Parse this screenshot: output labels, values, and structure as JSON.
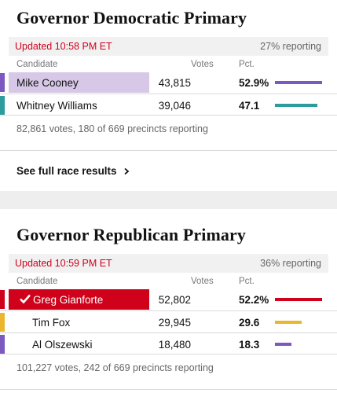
{
  "dem": {
    "title": "Governor Democratic Primary",
    "updated": "Updated 10:58 PM ET",
    "reporting": "27% reporting",
    "col_candidate": "Candidate",
    "col_votes": "Votes",
    "col_pct": "Pct.",
    "candidates": [
      {
        "name": "Mike Cooney",
        "votes": "43,815",
        "pct": "52.9%",
        "pct_value": 52.9,
        "color": "#7b59c0",
        "highlight": "#d6c8e6",
        "winner": false
      },
      {
        "name": "Whitney Williams",
        "votes": "39,046",
        "pct": "47.1",
        "pct_value": 47.1,
        "color": "#2d9c9c",
        "highlight": "",
        "winner": false
      }
    ],
    "summary": "82,861 votes, 180 of 669 precincts reporting",
    "full_results": "See full race results"
  },
  "rep": {
    "title": "Governor Republican Primary",
    "updated": "Updated 10:59 PM ET",
    "reporting": "36% reporting",
    "col_candidate": "Candidate",
    "col_votes": "Votes",
    "col_pct": "Pct.",
    "candidates": [
      {
        "name": "Greg Gianforte",
        "votes": "52,802",
        "pct": "52.2%",
        "pct_value": 52.2,
        "color": "#d0021b",
        "highlight": "#d0021b",
        "winner": true
      },
      {
        "name": "Tim Fox",
        "votes": "29,945",
        "pct": "29.6",
        "pct_value": 29.6,
        "color": "#e9b62e",
        "highlight": "",
        "winner": false
      },
      {
        "name": "Al Olszewski",
        "votes": "18,480",
        "pct": "18.3",
        "pct_value": 18.3,
        "color": "#7b59c0",
        "highlight": "",
        "winner": false
      }
    ],
    "summary": "101,227 votes, 242 of 669 precincts reporting"
  },
  "icons": {
    "winner": "checkmark-icon",
    "link": "chevron-right-icon"
  },
  "colors": {
    "updated_red": "#d0021b",
    "status_bg": "#f1f1f1"
  }
}
